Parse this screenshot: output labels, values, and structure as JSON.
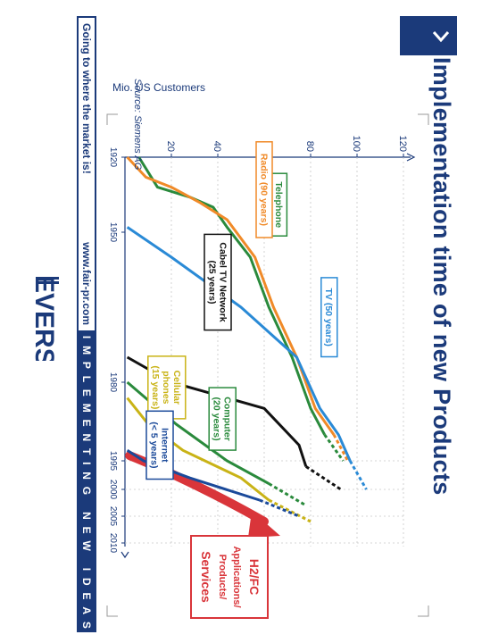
{
  "title": "Implementation time of new Products",
  "footer": {
    "slogan": "Going to where the market is!",
    "url": "www.fair-pr.com",
    "tagline_letters": [
      "I",
      "M",
      "P",
      "L",
      "E",
      "M",
      "E",
      "N",
      "T",
      "I",
      "N",
      "G",
      "",
      "N",
      "E",
      "W",
      "",
      "I",
      "D",
      "E",
      "A",
      "S"
    ]
  },
  "logo": {
    "text": "EVERS"
  },
  "colors": {
    "brand": "#1b3a7a",
    "telephone": "#2a8a3c",
    "radio": "#f08a28",
    "tv": "#2a8ad6",
    "cable": "#111111",
    "computer": "#2a8a3c",
    "cellular": "#c9b316",
    "internet": "#1b4a9a",
    "h2fc": "#d9353a"
  },
  "chart_data": {
    "type": "line",
    "ylabel": "Mio. US Customers",
    "source": "Source: Siemens AG",
    "xlim": [
      1920,
      2010
    ],
    "ylim": [
      0,
      120
    ],
    "x_ticks": [
      1920,
      1950,
      1980,
      1995,
      2000,
      2005,
      2010
    ],
    "y_ticks": [
      20,
      40,
      60,
      80,
      100,
      120
    ],
    "series": [
      {
        "name": "Telephone (70 years)",
        "label_lines": [
          "Telephone",
          "(70 years)"
        ],
        "color_key": "telephone",
        "solid": [
          [
            1920,
            6
          ],
          [
            1932,
            14
          ],
          [
            1936,
            28
          ],
          [
            1940,
            38
          ],
          [
            1948,
            44
          ],
          [
            1955,
            54
          ],
          [
            1965,
            62
          ],
          [
            1975,
            72
          ],
          [
            1985,
            80
          ],
          [
            1990,
            86
          ]
        ],
        "dashed": [
          [
            1990,
            86
          ],
          [
            1995,
            94
          ]
        ]
      },
      {
        "name": "Radio (90 years)",
        "label_lines": [
          "Radio (90 years)"
        ],
        "color_key": "radio",
        "solid": [
          [
            1920,
            1
          ],
          [
            1928,
            9
          ],
          [
            1932,
            20
          ],
          [
            1938,
            32
          ],
          [
            1945,
            44
          ],
          [
            1955,
            56
          ],
          [
            1965,
            64
          ],
          [
            1975,
            74
          ],
          [
            1985,
            82
          ],
          [
            1990,
            90
          ]
        ],
        "dashed": [
          [
            1990,
            90
          ],
          [
            1995,
            96
          ]
        ]
      },
      {
        "name": "TV (50 years)",
        "label_lines": [
          "TV (50 years)"
        ],
        "color_key": "tv",
        "solid": [
          [
            1948,
            1
          ],
          [
            1955,
            20
          ],
          [
            1965,
            50
          ],
          [
            1975,
            74
          ],
          [
            1985,
            84
          ],
          [
            1990,
            92
          ],
          [
            1995,
            97
          ]
        ],
        "dashed": [
          [
            1995,
            97
          ],
          [
            2000,
            104
          ]
        ]
      },
      {
        "name": "Cabel TV Network (25 years)",
        "label_lines": [
          "Cabel TV Network",
          "(25 years)"
        ],
        "color_key": "cable",
        "solid": [
          [
            1975,
            1
          ],
          [
            1980,
            20
          ],
          [
            1985,
            60
          ],
          [
            1992,
            75
          ],
          [
            1996,
            78
          ]
        ],
        "dashed": [
          [
            1996,
            78
          ],
          [
            2000,
            93
          ]
        ]
      },
      {
        "name": "Computer (20 years)",
        "label_lines": [
          "Computer",
          "(20 years)"
        ],
        "color_key": "computer",
        "solid": [
          [
            1980,
            1
          ],
          [
            1988,
            22
          ],
          [
            1995,
            44
          ],
          [
            1999,
            62
          ]
        ],
        "dashed": [
          [
            1999,
            62
          ],
          [
            2003,
            78
          ]
        ]
      },
      {
        "name": "Cellular phones (15 years)",
        "label_lines": [
          "Cellular",
          "phones",
          "(15 years)"
        ],
        "color_key": "cellular",
        "solid": [
          [
            1983,
            1
          ],
          [
            1988,
            10
          ],
          [
            1993,
            25
          ],
          [
            1998,
            50
          ],
          [
            2002,
            62
          ]
        ],
        "dashed": [
          [
            2002,
            62
          ],
          [
            2006,
            80
          ]
        ]
      },
      {
        "name": "Internet (< 5 years)",
        "label_lines": [
          "Internet",
          "(< 5 years)"
        ],
        "color_key": "internet",
        "solid": [
          [
            1993,
            1
          ],
          [
            1995,
            8
          ],
          [
            1998,
            28
          ],
          [
            2002,
            58
          ]
        ],
        "dashed": [
          [
            2002,
            58
          ],
          [
            2005,
            75
          ]
        ]
      }
    ],
    "annotation": {
      "lines": [
        "H2/FC",
        "Applications/",
        "Products/",
        "Services"
      ]
    }
  }
}
